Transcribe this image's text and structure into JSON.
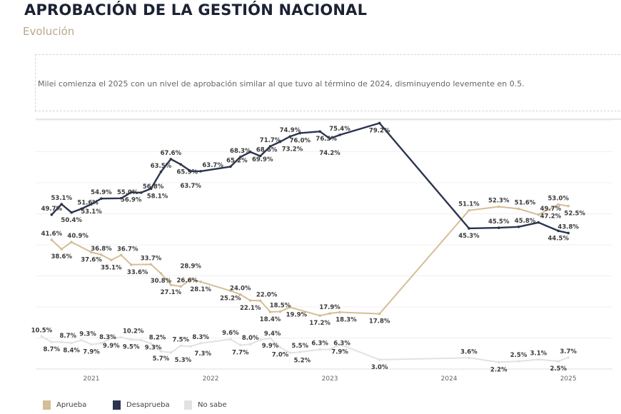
{
  "header": {
    "title": "APROBACIÓN DE LA GESTIÓN NACIONAL",
    "subtitle": "Evolución",
    "note": "Milei comienza el 2025 con un nivel de aprobación similar al que tuvo al término de 2024, disminuyendo levemente en 0.5."
  },
  "chart_data": {
    "type": "line",
    "title": "",
    "xlabel": "",
    "ylabel": "",
    "x_ticks": [
      "2021",
      "2022",
      "2023",
      "2024",
      "2025"
    ],
    "ylim": [
      0,
      80
    ],
    "grid": true,
    "legend": "bottom-left",
    "series": [
      {
        "name": "Aprueba",
        "color": "#d4be96",
        "points": [
          [
            "2020-09",
            41.6
          ],
          [
            "2020-10",
            38.6
          ],
          [
            "2020-11",
            40.9
          ],
          [
            "2021-01",
            37.6
          ],
          [
            "2021-02",
            36.8
          ],
          [
            "2021-03",
            35.1
          ],
          [
            "2021-04",
            36.7
          ],
          [
            "2021-05",
            33.6
          ],
          [
            "2021-07",
            33.7
          ],
          [
            "2021-08",
            30.8
          ],
          [
            "2021-09",
            27.1
          ],
          [
            "2021-10",
            26.6
          ],
          [
            "2021-11",
            28.9
          ],
          [
            "2021-12",
            28.1
          ],
          [
            "2022-03",
            25.2
          ],
          [
            "2022-04",
            24.0
          ],
          [
            "2022-05",
            22.1
          ],
          [
            "2022-06",
            22.0
          ],
          [
            "2022-07",
            18.4
          ],
          [
            "2022-08",
            18.5
          ],
          [
            "2022-09",
            19.9
          ],
          [
            "2022-12",
            17.2
          ],
          [
            "2023-01",
            17.9
          ],
          [
            "2023-02",
            18.3
          ],
          [
            "2023-06",
            17.8
          ],
          [
            "2024-03",
            51.1
          ],
          [
            "2024-06",
            52.3
          ],
          [
            "2024-08",
            51.6
          ],
          [
            "2024-10",
            49.7
          ],
          [
            "2024-12",
            53.0
          ],
          [
            "2025-01",
            52.5
          ]
        ]
      },
      {
        "name": "Desaprueba",
        "color": "#2b3450",
        "points": [
          [
            "2020-09",
            49.7
          ],
          [
            "2020-10",
            53.1
          ],
          [
            "2020-11",
            50.4
          ],
          [
            "2020-12",
            51.6
          ],
          [
            "2021-01",
            53.1
          ],
          [
            "2021-02",
            54.9
          ],
          [
            "2021-04",
            55.0
          ],
          [
            "2021-05",
            56.9
          ],
          [
            "2021-06",
            56.8
          ],
          [
            "2021-07",
            58.1
          ],
          [
            "2021-08",
            63.5
          ],
          [
            "2021-09",
            67.6
          ],
          [
            "2021-10",
            65.9
          ],
          [
            "2021-11",
            63.7
          ],
          [
            "2021-12",
            63.7
          ],
          [
            "2022-03",
            65.2
          ],
          [
            "2022-04",
            68.3
          ],
          [
            "2022-05",
            69.9
          ],
          [
            "2022-06",
            68.6
          ],
          [
            "2022-07",
            71.7
          ],
          [
            "2022-08",
            73.2
          ],
          [
            "2022-09",
            74.9
          ],
          [
            "2022-10",
            76.0
          ],
          [
            "2022-12",
            76.5
          ],
          [
            "2023-01",
            74.2
          ],
          [
            "2023-02",
            75.4
          ],
          [
            "2023-06",
            79.2
          ],
          [
            "2024-03",
            45.3
          ],
          [
            "2024-06",
            45.5
          ],
          [
            "2024-08",
            45.8
          ],
          [
            "2024-10",
            47.2
          ],
          [
            "2024-12",
            44.5
          ],
          [
            "2025-01",
            43.8
          ]
        ]
      },
      {
        "name": "No sabe",
        "color": "#e2e2e4",
        "points": [
          [
            "2020-08",
            10.5
          ],
          [
            "2020-09",
            8.7
          ],
          [
            "2020-10",
            8.7
          ],
          [
            "2020-11",
            8.4
          ],
          [
            "2020-12",
            9.3
          ],
          [
            "2021-01",
            7.9
          ],
          [
            "2021-02",
            8.3
          ],
          [
            "2021-03",
            9.9
          ],
          [
            "2021-04",
            10.2
          ],
          [
            "2021-05",
            9.5
          ],
          [
            "2021-06",
            9.3
          ],
          [
            "2021-07",
            8.2
          ],
          [
            "2021-08",
            5.7
          ],
          [
            "2021-09",
            5.3
          ],
          [
            "2021-10",
            7.5
          ],
          [
            "2021-11",
            7.3
          ],
          [
            "2021-12",
            8.3
          ],
          [
            "2022-03",
            9.6
          ],
          [
            "2022-04",
            7.7
          ],
          [
            "2022-05",
            8.0
          ],
          [
            "2022-06",
            9.4
          ],
          [
            "2022-07",
            9.9
          ],
          [
            "2022-08",
            7.0
          ],
          [
            "2022-09",
            5.2
          ],
          [
            "2022-10",
            5.5
          ],
          [
            "2022-12",
            6.3
          ],
          [
            "2023-01",
            6.3
          ],
          [
            "2023-02",
            7.9
          ],
          [
            "2023-06",
            3.0
          ],
          [
            "2024-03",
            3.6
          ],
          [
            "2024-06",
            2.2
          ],
          [
            "2024-08",
            2.5
          ],
          [
            "2024-10",
            3.1
          ],
          [
            "2024-12",
            2.5
          ],
          [
            "2025-01",
            3.7
          ]
        ]
      }
    ]
  }
}
